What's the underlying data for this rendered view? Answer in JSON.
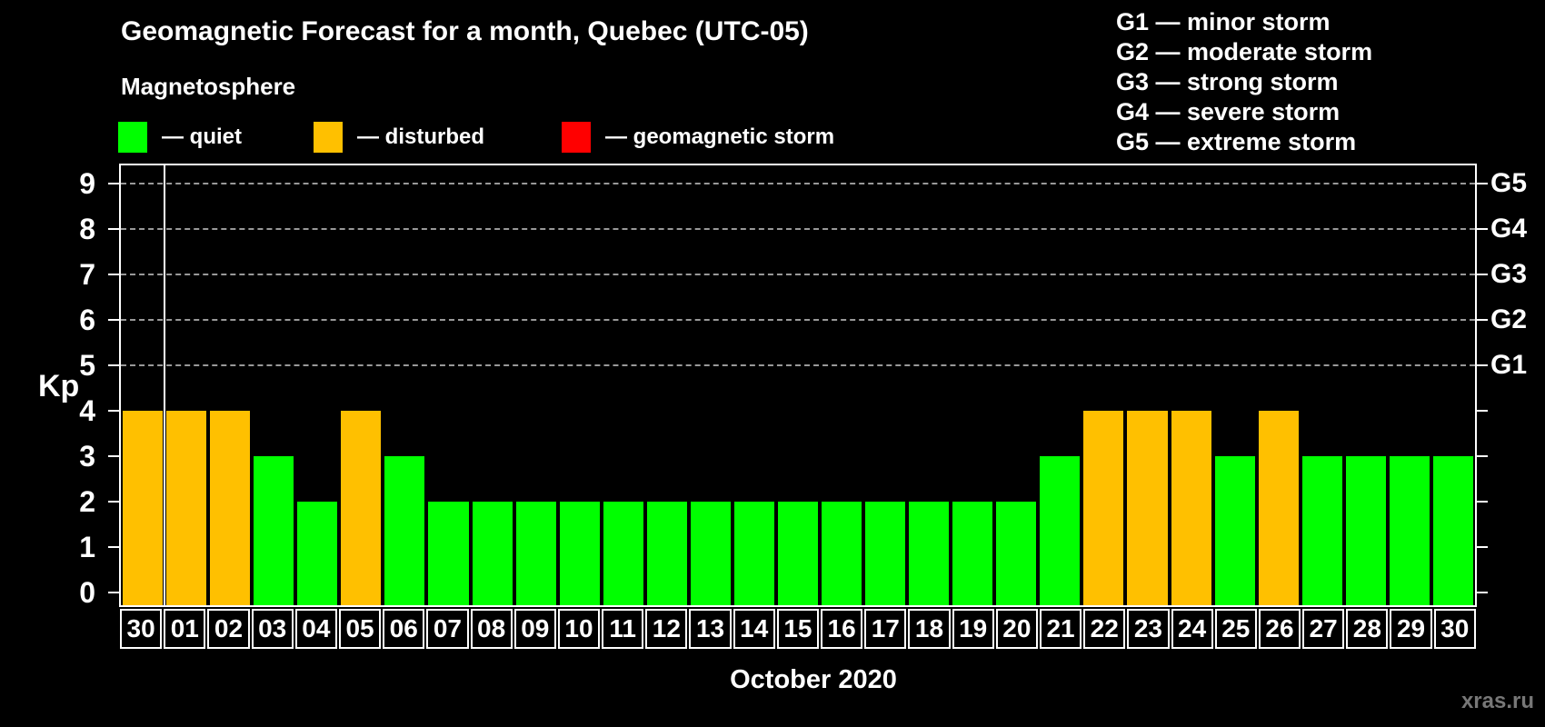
{
  "title": "Geomagnetic Forecast for a month, Quebec (UTC-05)",
  "subtitle": "Magnetosphere",
  "colors": {
    "quiet": "#00ff00",
    "disturbed": "#ffc000",
    "storm": "#ff0000",
    "background": "#000000",
    "axis": "#ffffff",
    "gridline": "#999999",
    "watermark": "#777777"
  },
  "legend": {
    "items": [
      {
        "label": "— quiet",
        "state": "quiet",
        "color": "#00ff00"
      },
      {
        "label": "— disturbed",
        "state": "disturbed",
        "color": "#ffc000"
      },
      {
        "label": "— geomagnetic storm",
        "state": "storm",
        "color": "#ff0000"
      }
    ]
  },
  "storm_scale_legend": [
    "G1 — minor storm",
    "G2 — moderate storm",
    "G3 — strong storm",
    "G4 — severe storm",
    "G5 — extreme storm"
  ],
  "watermark": "xras.ru",
  "chart_data": {
    "type": "bar",
    "title": "Geomagnetic Forecast for a month, Quebec (UTC-05)",
    "xlabel": "October 2020",
    "ylabel": "Kp",
    "ylim": [
      0,
      9.4
    ],
    "grid": "horizontal dashed lines at Kp 5-9 only",
    "grid_levels": [
      5,
      6,
      7,
      8,
      9
    ],
    "y_ticks": [
      0,
      1,
      2,
      3,
      4,
      5,
      6,
      7,
      8,
      9
    ],
    "right_axis_labels": [
      {
        "label": "G1",
        "kp": 5
      },
      {
        "label": "G2",
        "kp": 6
      },
      {
        "label": "G3",
        "kp": 7
      },
      {
        "label": "G4",
        "kp": 8
      },
      {
        "label": "G5",
        "kp": 9
      }
    ],
    "categories": [
      "30",
      "01",
      "02",
      "03",
      "04",
      "05",
      "06",
      "07",
      "08",
      "09",
      "10",
      "11",
      "12",
      "13",
      "14",
      "15",
      "16",
      "17",
      "18",
      "19",
      "20",
      "21",
      "22",
      "23",
      "24",
      "25",
      "26",
      "27",
      "28",
      "29",
      "30"
    ],
    "values": [
      4,
      4,
      4,
      3,
      2,
      4,
      3,
      2,
      2,
      2,
      2,
      2,
      2,
      2,
      2,
      2,
      2,
      2,
      2,
      2,
      2,
      3,
      4,
      4,
      4,
      3,
      4,
      3,
      3,
      3,
      3
    ],
    "bar_states": [
      "disturbed",
      "disturbed",
      "disturbed",
      "quiet",
      "quiet",
      "disturbed",
      "quiet",
      "quiet",
      "quiet",
      "quiet",
      "quiet",
      "quiet",
      "quiet",
      "quiet",
      "quiet",
      "quiet",
      "quiet",
      "quiet",
      "quiet",
      "quiet",
      "quiet",
      "quiet",
      "disturbed",
      "disturbed",
      "disturbed",
      "quiet",
      "disturbed",
      "quiet",
      "quiet",
      "quiet",
      "quiet"
    ],
    "separator_after_index": 0,
    "legend_position": "top-left",
    "right_legend_position": "top-right"
  }
}
